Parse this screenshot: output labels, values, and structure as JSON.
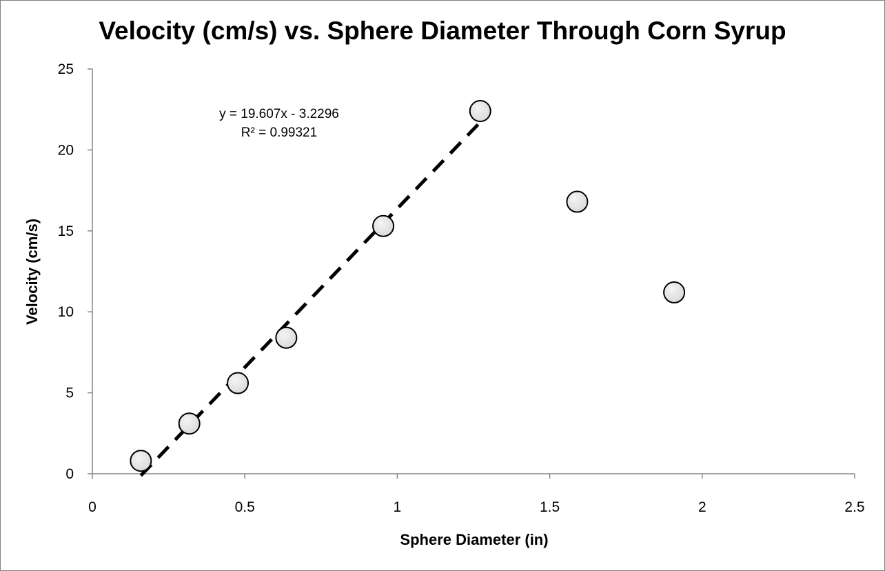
{
  "chart_data": {
    "type": "scatter",
    "title": "Velocity (cm/s) vs. Sphere Diameter Through Corn Syrup",
    "xlabel": "Sphere Diameter (in)",
    "ylabel": "Velocity (cm/s)",
    "xlim": [
      0,
      2.5
    ],
    "ylim": [
      0,
      25
    ],
    "x_ticks": [
      0,
      0.5,
      1,
      1.5,
      2,
      2.5
    ],
    "x_tick_labels": [
      "0",
      "0.5",
      "1",
      "1.5",
      "2",
      "2.5"
    ],
    "y_ticks": [
      0,
      5,
      10,
      15,
      20,
      25
    ],
    "y_tick_labels": [
      "0",
      "5",
      "10",
      "15",
      "20",
      "25"
    ],
    "grid": false,
    "legend": "none",
    "series": [
      {
        "name": "Velocity",
        "x": [
          0.159,
          0.318,
          0.477,
          0.636,
          0.954,
          1.272,
          1.59,
          1.908
        ],
        "y": [
          0.8,
          3.1,
          5.6,
          8.4,
          15.3,
          22.4,
          16.8,
          11.2
        ],
        "marker_color": "#d9d9d9",
        "marker_edge": "#000000"
      }
    ],
    "trendline": {
      "type": "linear",
      "slope": 19.607,
      "intercept": -3.2296,
      "x_range": [
        0.159,
        1.272
      ],
      "style": "dashed",
      "color": "#000000",
      "equation_label": "y = 19.607x - 3.2296",
      "r_squared_label": "R² = 0.99321"
    }
  }
}
